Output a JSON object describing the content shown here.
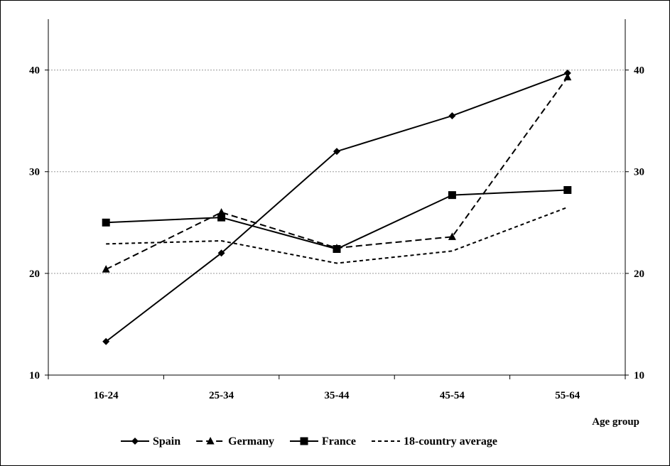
{
  "chart_data": {
    "type": "line",
    "title": "",
    "xlabel": "Age group",
    "ylabel": "",
    "ylim": [
      10,
      45
    ],
    "y_ticks": [
      10,
      20,
      30,
      40
    ],
    "right_axis": true,
    "grid": "horizontal dashed",
    "legend_position": "bottom",
    "categories": [
      "16-24",
      "25-34",
      "35-44",
      "45-54",
      "55-64"
    ],
    "series": [
      {
        "name": "Spain",
        "values": [
          13.3,
          22.0,
          32.0,
          35.5,
          39.7
        ],
        "style": "solid",
        "marker": "diamond"
      },
      {
        "name": "Germany",
        "values": [
          20.4,
          26.0,
          22.5,
          23.6,
          39.3
        ],
        "style": "dashed",
        "marker": "triangle"
      },
      {
        "name": "France",
        "values": [
          25.0,
          25.5,
          22.4,
          27.7,
          28.2
        ],
        "style": "solid",
        "marker": "square"
      },
      {
        "name": "18-country average",
        "values": [
          22.9,
          23.2,
          21.0,
          22.2,
          26.5
        ],
        "style": "short-dashed",
        "marker": "none"
      }
    ]
  },
  "colors": {
    "line": "#000000",
    "grid": "#9a9a9a"
  }
}
